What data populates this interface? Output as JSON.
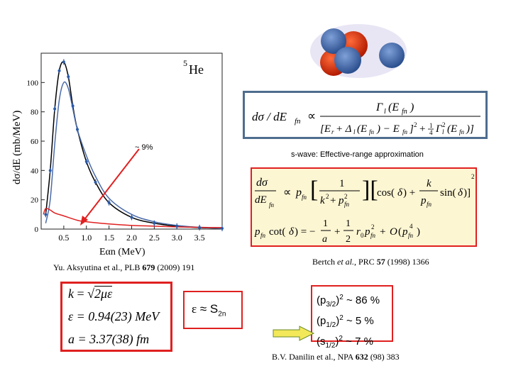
{
  "plot": {
    "isotope": "He",
    "mass_number": "5",
    "ylabel": "dσ/dE (mb/MeV)",
    "xlabel": "Eαn (MeV)",
    "yticks": [
      "0",
      "20",
      "40",
      "60",
      "80",
      "100"
    ],
    "xticks": [
      "0.5",
      "1.0",
      "1.5",
      "2.0",
      "2.5",
      "3.0",
      "3.5"
    ],
    "annotation": "~ 9%",
    "colors": {
      "total": "#000000",
      "fit": "#4a6aa8",
      "swave": "#e02020",
      "data": "#2a5aa8",
      "arrow": "#e02020"
    }
  },
  "chart_data": {
    "type": "line",
    "title": "",
    "xlabel": "Eαn (MeV)",
    "ylabel": "dσ/dE (mb/MeV)",
    "xlim": [
      0,
      4
    ],
    "ylim": [
      0,
      120
    ],
    "series": [
      {
        "x": [
          0.1,
          0.2,
          0.3,
          0.4,
          0.5,
          0.6,
          0.7,
          0.8,
          1.0,
          1.2,
          1.5,
          2.0,
          2.5,
          3.0,
          3.5,
          4.0
        ],
        "y": [
          10,
          40,
          82,
          108,
          114,
          104,
          84,
          68,
          46,
          32,
          18,
          8,
          4,
          2,
          1,
          0.5
        ]
      },
      {
        "x": [
          0.1,
          0.2,
          0.3,
          0.4,
          0.5,
          0.6,
          0.7,
          0.8,
          1.0,
          1.2,
          1.5,
          2.0,
          2.5,
          3.0,
          3.5,
          4.0
        ],
        "y": [
          4,
          20,
          58,
          88,
          100,
          96,
          82,
          68,
          50,
          36,
          21,
          10,
          5,
          2.5,
          1.2,
          0.5
        ]
      },
      {
        "x": [
          0.05,
          0.1,
          0.2,
          0.3,
          0.5,
          0.8,
          1.0,
          1.5,
          2.0,
          2.5,
          3.0,
          3.5,
          4.0
        ],
        "y": [
          10,
          14,
          13,
          11,
          9,
          6,
          5,
          3.5,
          2.5,
          2,
          1.5,
          1.2,
          1
        ]
      }
    ]
  },
  "references": {
    "left": {
      "pre": "Yu. Aksyutina et al., PLB ",
      "vol": "679",
      "post": " (2009) 191"
    },
    "bertch": {
      "pre": "Bertch ",
      "etal": "et al.",
      "mid": ", PRC ",
      "vol": "57",
      "post": " (1998) 1366"
    },
    "danilin": {
      "pre": "B.V. Danilin et al., NPA ",
      "vol": "632",
      "post": " (98) 383"
    }
  },
  "swave_label": "s-wave: Effective-range approximation",
  "epsilon_box": {
    "k_lhs": "k",
    "k_rhs_pre": "= ",
    "k_root": "2με",
    "eps_lhs": "ε",
    "eps_rhs": "= 0.94(23) MeV",
    "a_lhs": "a",
    "a_rhs": "= 3.37(38) fm"
  },
  "approx": {
    "symbol": "ε",
    "rel": " ≈ S",
    "sub": "2n"
  },
  "percentages": [
    {
      "state": "(p",
      "sub": "3/2",
      "rest": ")",
      "sup": "2",
      "value": " ~ 86 %"
    },
    {
      "state": "(p",
      "sub": "1/2",
      "rest": ")",
      "sup": "2",
      "value": " ~  5 %"
    },
    {
      "state": "(s",
      "sub": "1/2",
      "rest": ")",
      "sup": "2",
      "value": " ~  7 %"
    }
  ]
}
